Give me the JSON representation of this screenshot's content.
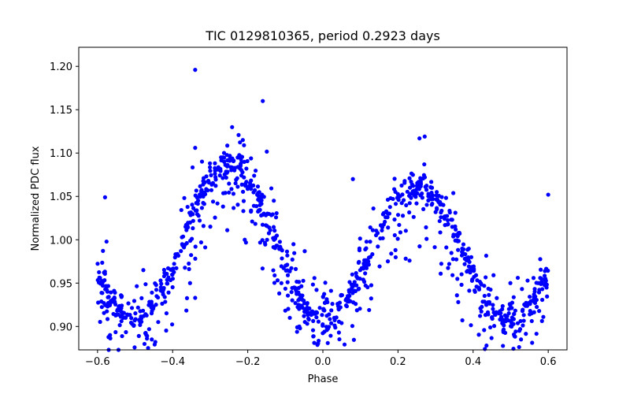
{
  "chart_data": {
    "type": "scatter",
    "title": "TIC 0129810365, period 0.2923 days",
    "xlabel": "Phase",
    "ylabel": "Normalized PDC flux",
    "xlim": [
      -0.65,
      0.65
    ],
    "ylim": [
      0.873,
      1.222
    ],
    "x_ticks": [
      -0.6,
      -0.4,
      -0.2,
      0.0,
      0.2,
      0.4,
      0.6
    ],
    "x_tick_labels": [
      "−0.6",
      "−0.4",
      "−0.2",
      "0.0",
      "0.2",
      "0.4",
      "0.6"
    ],
    "y_ticks": [
      0.9,
      0.95,
      1.0,
      1.05,
      1.1,
      1.15,
      1.2
    ],
    "y_tick_labels": [
      "0.90",
      "0.95",
      "1.00",
      "1.05",
      "1.10",
      "1.15",
      "1.20"
    ],
    "grid": false,
    "marker_color": "#0000ff",
    "x_range": [
      -0.6,
      0.6
    ],
    "phase_of_minimum": [
      -0.5,
      0.0,
      0.5
    ],
    "phase_of_maximum": [
      -0.25,
      0.25
    ],
    "approx_min_flux": [
      0.92,
      0.905,
      0.92
    ],
    "approx_max_flux": [
      1.09,
      1.065
    ],
    "notable_points": [
      {
        "x": -0.34,
        "y": 1.196
      },
      {
        "x": -0.16,
        "y": 1.16
      },
      {
        "x": -0.21,
        "y": 1.109
      },
      {
        "x": -0.34,
        "y": 1.106
      },
      {
        "x": -0.34,
        "y": 0.933
      },
      {
        "x": -0.49,
        "y": 0.889
      },
      {
        "x": 0.51,
        "y": 0.889
      },
      {
        "x": -0.58,
        "y": 1.049
      },
      {
        "x": 0.6,
        "y": 1.052
      },
      {
        "x": 0.27,
        "y": 1.087
      },
      {
        "x": 0.08,
        "y": 1.07
      }
    ]
  }
}
